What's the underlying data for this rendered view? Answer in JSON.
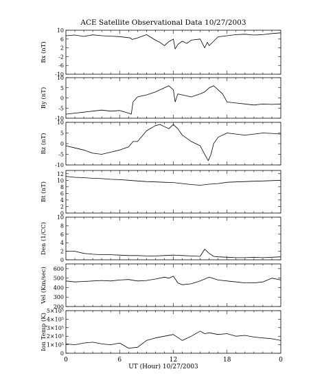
{
  "chart_data": {
    "type": "line",
    "title": "ACE Satellite Observational Data   10/27/2003",
    "xlabel": "UT (Hour)   10/27/2003",
    "x_ticks": [
      "0",
      "6",
      "12",
      "18",
      "0"
    ],
    "xlim": [
      0,
      24
    ],
    "panels": [
      {
        "ylabel": "Bx (nT)",
        "ylim": [
          -10,
          10
        ],
        "yticks": [
          "10",
          "6",
          "2",
          "-2",
          "-6",
          "-10"
        ],
        "ytick_values": [
          10,
          6,
          2,
          -2,
          -6,
          -10
        ],
        "series": {
          "x": [
            0,
            1,
            2,
            3,
            4,
            5,
            6,
            7.2,
            7.4,
            8,
            9,
            10,
            10.5,
            11,
            11.5,
            12,
            12.2,
            12.5,
            13,
            13.5,
            14,
            15,
            15.5,
            15.8,
            16,
            17,
            18,
            19,
            20,
            21,
            22,
            23,
            24
          ],
          "y": [
            7.5,
            7.8,
            7.2,
            7.9,
            7.5,
            7.3,
            7.1,
            6.5,
            5.8,
            6.5,
            8.0,
            5.5,
            4.5,
            3.0,
            4.8,
            6.0,
            1.5,
            3.5,
            5.0,
            4.0,
            5.5,
            6.0,
            2.0,
            4.5,
            3.0,
            7.0,
            7.5,
            8.0,
            8.2,
            7.8,
            8.0,
            8.5,
            8.8
          ]
        }
      },
      {
        "ylabel": "By (nT)",
        "ylim": [
          -10,
          10
        ],
        "yticks": [
          "10",
          "5",
          "0",
          "-5",
          "-10"
        ],
        "ytick_values": [
          10,
          5,
          0,
          -5,
          -10
        ],
        "series": {
          "x": [
            0,
            1,
            2,
            3,
            4,
            5,
            6,
            7,
            7.3,
            7.5,
            8,
            9,
            10,
            11,
            11.5,
            12,
            12.2,
            12.5,
            13,
            14,
            15,
            15.5,
            16,
            16.5,
            17,
            17.5,
            18,
            19,
            20,
            21,
            22,
            23,
            24
          ],
          "y": [
            -8.0,
            -7.5,
            -7.0,
            -6.5,
            -6.0,
            -6.5,
            -6.2,
            -7.5,
            -8.0,
            -2.0,
            0.5,
            1.5,
            3.0,
            5.0,
            6.0,
            4.0,
            -2.0,
            2.0,
            1.5,
            0.5,
            2.0,
            3.0,
            5.0,
            6.0,
            4.0,
            2.0,
            -2.0,
            -2.5,
            -3.0,
            -3.5,
            -3.0,
            -3.2,
            -3.0
          ]
        }
      },
      {
        "ylabel": "Bz (nT)",
        "ylim": [
          -10,
          10
        ],
        "yticks": [
          "10",
          "5",
          "0",
          "-5",
          "-10"
        ],
        "ytick_values": [
          10,
          5,
          0,
          -5,
          -10
        ],
        "series": {
          "x": [
            0,
            1,
            2,
            3,
            4,
            5,
            6,
            7,
            7.5,
            8,
            9,
            10,
            10.5,
            11,
            11.5,
            12,
            12.5,
            13,
            14,
            15,
            15.5,
            15.9,
            16.2,
            16.5,
            17,
            18,
            19,
            20,
            21,
            22,
            23,
            24
          ],
          "y": [
            -1.0,
            -2.0,
            -3.0,
            -4.5,
            -5.0,
            -4.0,
            -3.0,
            -1.5,
            1.0,
            1.0,
            6.0,
            8.5,
            9.0,
            8.0,
            7.0,
            9.0,
            7.0,
            4.0,
            1.0,
            -1.0,
            -5.0,
            -8.0,
            -5.0,
            0.0,
            3.0,
            5.0,
            4.5,
            4.0,
            4.5,
            5.0,
            4.8,
            4.5
          ]
        }
      },
      {
        "ylabel": "Bt (nT)",
        "ylim": [
          0,
          13
        ],
        "yticks": [
          "12",
          "10",
          "8",
          "6",
          "4",
          "2",
          "0"
        ],
        "ytick_values": [
          12,
          10,
          8,
          6,
          4,
          2,
          0
        ],
        "series": {
          "x": [
            0,
            1,
            2,
            3,
            4,
            5,
            6,
            7,
            7.5,
            8,
            9,
            10,
            11,
            12,
            13,
            14,
            15,
            16,
            17,
            18,
            19,
            20,
            21,
            22,
            23,
            24
          ],
          "y": [
            11.2,
            10.9,
            10.8,
            10.6,
            10.5,
            10.3,
            10.2,
            10.0,
            9.9,
            9.8,
            9.6,
            9.5,
            9.4,
            9.3,
            9.0,
            8.7,
            8.5,
            8.8,
            9.0,
            9.4,
            9.5,
            9.6,
            9.7,
            9.8,
            9.9,
            10.0
          ]
        }
      },
      {
        "ylabel": "Den (1/CC)",
        "ylim": [
          0,
          10
        ],
        "yticks": [
          "10",
          "8",
          "6",
          "4",
          "2",
          "0"
        ],
        "ytick_values": [
          10,
          8,
          6,
          4,
          2,
          0
        ],
        "series": {
          "x": [
            0,
            1,
            2,
            3,
            4,
            5,
            6,
            7,
            8,
            9,
            10,
            11,
            12,
            13,
            14,
            15,
            15.5,
            16,
            16.5,
            17,
            18,
            19,
            20,
            21,
            22,
            23,
            24
          ],
          "y": [
            2.0,
            2.0,
            1.5,
            1.3,
            1.2,
            1.2,
            1.1,
            1.0,
            1.0,
            0.9,
            0.9,
            1.0,
            1.1,
            1.0,
            0.9,
            0.8,
            2.5,
            1.5,
            0.8,
            0.7,
            0.6,
            0.5,
            0.5,
            0.6,
            0.5,
            0.6,
            0.7
          ]
        }
      },
      {
        "ylabel": "Vel (Km/sec)",
        "ylim": [
          200,
          650
        ],
        "yticks": [
          "600",
          "500",
          "400",
          "300",
          "200"
        ],
        "ytick_values": [
          600,
          500,
          400,
          300,
          200
        ],
        "series": {
          "x": [
            0,
            1,
            2,
            3,
            4,
            5,
            6,
            7,
            8,
            9,
            10,
            11,
            11.5,
            12,
            12.5,
            13,
            14,
            15,
            16,
            17,
            18,
            19,
            20,
            21,
            22,
            23,
            24
          ],
          "y": [
            470,
            460,
            465,
            470,
            475,
            470,
            480,
            485,
            470,
            475,
            490,
            510,
            500,
            520,
            450,
            430,
            440,
            470,
            510,
            480,
            470,
            460,
            450,
            450,
            460,
            500,
            480
          ]
        }
      },
      {
        "ylabel": "Ion Temp (K)",
        "ylim": [
          0,
          500000
        ],
        "yticks": [
          "5×10⁵",
          "4×10⁵",
          "3×10⁵",
          "2×10⁵",
          "1×10⁵",
          "0"
        ],
        "ytick_values": [
          500000,
          400000,
          300000,
          200000,
          100000,
          0
        ],
        "series": {
          "x": [
            0,
            1,
            2,
            3,
            4,
            5,
            6,
            7,
            8,
            9,
            10,
            11,
            12,
            13,
            14,
            15,
            15.5,
            16,
            17,
            18,
            19,
            20,
            21,
            22,
            23,
            24
          ],
          "y": [
            110000,
            100000,
            120000,
            130000,
            110000,
            100000,
            120000,
            60000,
            70000,
            150000,
            180000,
            200000,
            220000,
            150000,
            200000,
            260000,
            230000,
            240000,
            220000,
            230000,
            200000,
            210000,
            190000,
            180000,
            170000,
            150000
          ]
        }
      }
    ]
  }
}
